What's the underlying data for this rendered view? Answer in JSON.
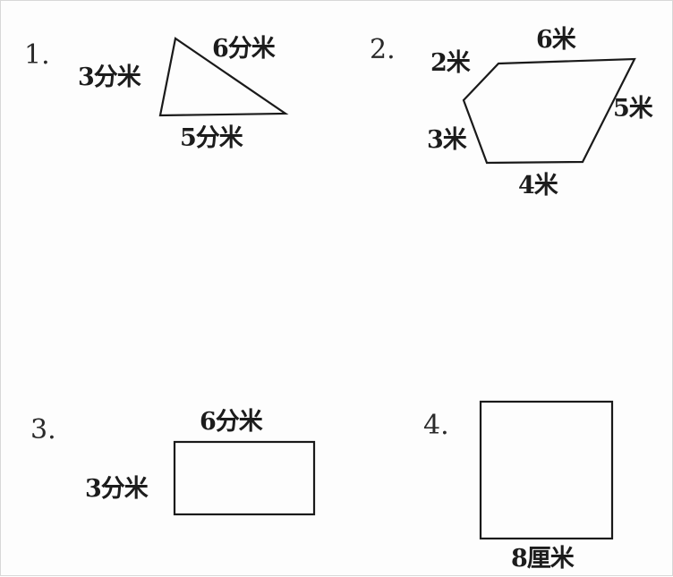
{
  "problems": [
    {
      "number": "1.",
      "shape": "triangle",
      "labels": {
        "left": "3分米",
        "top": "6分米",
        "bottom": "5分米"
      }
    },
    {
      "number": "2.",
      "shape": "pentagon",
      "labels": {
        "top": "6米",
        "upper_left": "2米",
        "right": "5米",
        "lower_left": "3米",
        "bottom": "4米"
      }
    },
    {
      "number": "3.",
      "shape": "rectangle",
      "labels": {
        "top": "6分米",
        "left": "3分米"
      }
    },
    {
      "number": "4.",
      "shape": "square",
      "labels": {
        "bottom": "8厘米"
      }
    }
  ]
}
